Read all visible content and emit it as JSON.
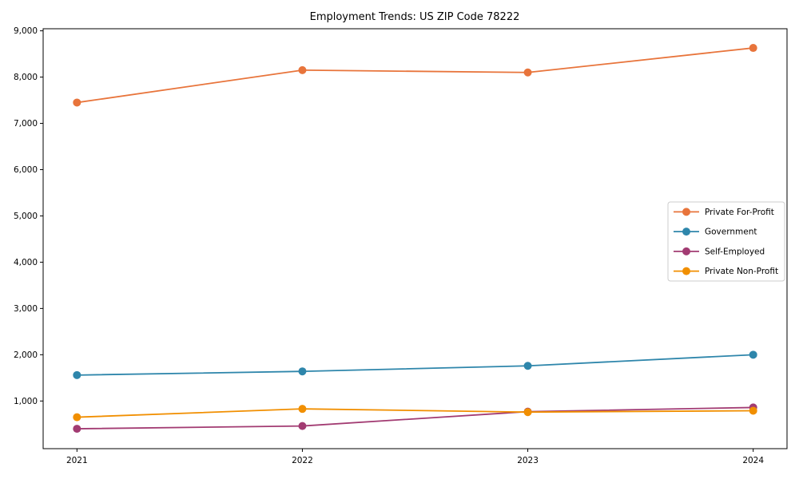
{
  "chart_data": {
    "type": "line",
    "title": "Employment Trends: US ZIP Code 78222",
    "x": [
      2021,
      2022,
      2023,
      2024
    ],
    "x_tick_labels": [
      "2021",
      "2022",
      "2023",
      "2024"
    ],
    "xlim": [
      2020.85,
      2024.15
    ],
    "ylim": [
      -30,
      9045
    ],
    "y_ticks": [
      1000,
      2000,
      3000,
      4000,
      5000,
      6000,
      7000,
      8000,
      9000
    ],
    "y_tick_labels": [
      "1,000",
      "2,000",
      "3,000",
      "4,000",
      "5,000",
      "6,000",
      "7,000",
      "8,000",
      "9,000"
    ],
    "grid": false,
    "marker": "o",
    "legend": {
      "position": "center right",
      "background": "#ffffff",
      "border_color": "#cccccc"
    },
    "axis_color": "#000000",
    "series": [
      {
        "name": "Private For-Profit",
        "color": "#E8743B",
        "values": [
          7450,
          8150,
          8100,
          8630
        ]
      },
      {
        "name": "Government",
        "color": "#2E86AB",
        "values": [
          1560,
          1640,
          1760,
          2000
        ]
      },
      {
        "name": "Self-Employed",
        "color": "#A23B72",
        "values": [
          400,
          460,
          770,
          860
        ]
      },
      {
        "name": "Private Non-Profit",
        "color": "#F18F01",
        "values": [
          650,
          830,
          760,
          790
        ]
      }
    ]
  }
}
